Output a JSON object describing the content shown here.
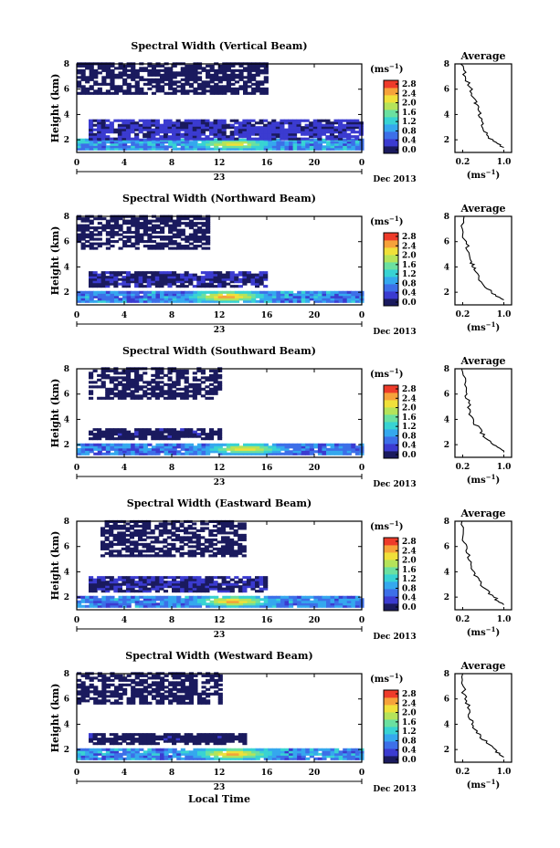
{
  "figure": {
    "xlabel": "Local Time",
    "x_ticks": [
      "0",
      "4",
      "8",
      "12",
      "16",
      "20",
      "0"
    ],
    "day_label": "23",
    "month_label": "Dec 2013",
    "ylabel": "Height (km)",
    "y_ticks": [
      "2",
      "4",
      "6",
      "8"
    ],
    "colorbar_unit": "(ms",
    "colorbar_unit_exp": "−1",
    "colorbar_unit_close": ")",
    "colorbar_ticks": [
      "0.0",
      "0.4",
      "0.8",
      "1.2",
      "1.6",
      "2.0",
      "2.4",
      "2.8"
    ],
    "avg_title": "Average",
    "avg_x_ticks": [
      "0.2",
      "1.0"
    ],
    "avg_y_ticks": [
      "2",
      "4",
      "6",
      "8"
    ],
    "avg_xlabel": "(ms",
    "colorscale": [
      "#1a1a5e",
      "#3b3bd0",
      "#3d6fe8",
      "#35a8ee",
      "#38d3d3",
      "#6be0a0",
      "#b5e35a",
      "#f0e03a",
      "#f6a23a",
      "#ee3b2a"
    ]
  },
  "chart_data": [
    {
      "type": "heatmap",
      "title": "Spectral Width (Vertical Beam)",
      "x_range": [
        0,
        24
      ],
      "y_range": [
        1,
        8
      ],
      "z_range": [
        0,
        2.8
      ],
      "bands": [
        {
          "y": [
            1.2,
            2.0
          ],
          "x": [
            0,
            24
          ],
          "z": 0.9
        },
        {
          "y": [
            2.0,
            3.6
          ],
          "x": [
            1,
            24
          ],
          "z": 0.35
        },
        {
          "y": [
            5.6,
            8.0
          ],
          "x": [
            0,
            16
          ],
          "z": 0.08
        }
      ],
      "peak": {
        "x": 13,
        "y": 1.6,
        "z": 1.7
      },
      "profile": [
        [
          0.2,
          8
        ],
        [
          0.25,
          7
        ],
        [
          0.35,
          6
        ],
        [
          0.45,
          5
        ],
        [
          0.5,
          4.4
        ],
        [
          0.55,
          3.5
        ],
        [
          0.6,
          2.8
        ],
        [
          0.75,
          2
        ],
        [
          1.0,
          1.4
        ]
      ]
    },
    {
      "type": "heatmap",
      "title": "Spectral Width (Northward Beam)",
      "x_range": [
        0,
        24
      ],
      "y_range": [
        1,
        8
      ],
      "z_range": [
        0,
        2.8
      ],
      "bands": [
        {
          "y": [
            1.2,
            2.0
          ],
          "x": [
            0,
            24
          ],
          "z": 0.8
        },
        {
          "y": [
            2.4,
            3.6
          ],
          "x": [
            1,
            16
          ],
          "z": 0.25
        },
        {
          "y": [
            5.4,
            8.0
          ],
          "x": [
            0,
            11
          ],
          "z": 0.08
        }
      ],
      "peak": {
        "x": 12.5,
        "y": 1.6,
        "z": 2.1
      },
      "profile": [
        [
          0.2,
          8
        ],
        [
          0.22,
          6.5
        ],
        [
          0.3,
          5.5
        ],
        [
          0.35,
          4.4
        ],
        [
          0.45,
          3.8
        ],
        [
          0.55,
          2.8
        ],
        [
          0.75,
          2
        ],
        [
          1.0,
          1.4
        ]
      ]
    },
    {
      "type": "heatmap",
      "title": "Spectral Width (Southward Beam)",
      "x_range": [
        0,
        24
      ],
      "y_range": [
        1,
        8
      ],
      "z_range": [
        0,
        2.8
      ],
      "bands": [
        {
          "y": [
            1.2,
            2.0
          ],
          "x": [
            0,
            24
          ],
          "z": 0.75
        },
        {
          "y": [
            2.4,
            3.2
          ],
          "x": [
            1,
            12
          ],
          "z": 0.2
        },
        {
          "y": [
            5.6,
            8.0
          ],
          "x": [
            1,
            12
          ],
          "z": 0.08
        }
      ],
      "peak": {
        "x": 14,
        "y": 1.6,
        "z": 1.9
      },
      "profile": [
        [
          0.2,
          8
        ],
        [
          0.25,
          6.5
        ],
        [
          0.3,
          5.5
        ],
        [
          0.35,
          4.4
        ],
        [
          0.45,
          3.6
        ],
        [
          0.6,
          2.8
        ],
        [
          0.8,
          2
        ],
        [
          1.0,
          1.4
        ]
      ]
    },
    {
      "type": "heatmap",
      "title": "Spectral Width (Eastward Beam)",
      "x_range": [
        0,
        24
      ],
      "y_range": [
        1,
        8
      ],
      "z_range": [
        0,
        2.8
      ],
      "bands": [
        {
          "y": [
            1.2,
            2.0
          ],
          "x": [
            0,
            24
          ],
          "z": 0.8
        },
        {
          "y": [
            2.4,
            3.6
          ],
          "x": [
            1,
            16
          ],
          "z": 0.25
        },
        {
          "y": [
            5.2,
            8.0
          ],
          "x": [
            2,
            14
          ],
          "z": 0.08
        }
      ],
      "peak": {
        "x": 13,
        "y": 1.6,
        "z": 2.0
      },
      "profile": [
        [
          0.2,
          8
        ],
        [
          0.23,
          6.5
        ],
        [
          0.3,
          5.5
        ],
        [
          0.38,
          4.4
        ],
        [
          0.45,
          3.6
        ],
        [
          0.6,
          2.8
        ],
        [
          0.8,
          2
        ],
        [
          1.0,
          1.4
        ]
      ]
    },
    {
      "type": "heatmap",
      "title": "Spectral Width (Westward Beam)",
      "x_range": [
        0,
        24
      ],
      "y_range": [
        1,
        8
      ],
      "z_range": [
        0,
        2.8
      ],
      "bands": [
        {
          "y": [
            1.2,
            2.0
          ],
          "x": [
            0,
            24
          ],
          "z": 0.85
        },
        {
          "y": [
            2.4,
            3.2
          ],
          "x": [
            1,
            14
          ],
          "z": 0.2
        },
        {
          "y": [
            5.6,
            8.0
          ],
          "x": [
            0,
            12
          ],
          "z": 0.08
        }
      ],
      "peak": {
        "x": 13,
        "y": 1.6,
        "z": 2.0
      },
      "profile": [
        [
          0.2,
          8
        ],
        [
          0.22,
          6.5
        ],
        [
          0.3,
          5.5
        ],
        [
          0.35,
          4.4
        ],
        [
          0.45,
          3.6
        ],
        [
          0.6,
          2.8
        ],
        [
          0.8,
          2
        ],
        [
          1.0,
          1.4
        ]
      ]
    }
  ]
}
